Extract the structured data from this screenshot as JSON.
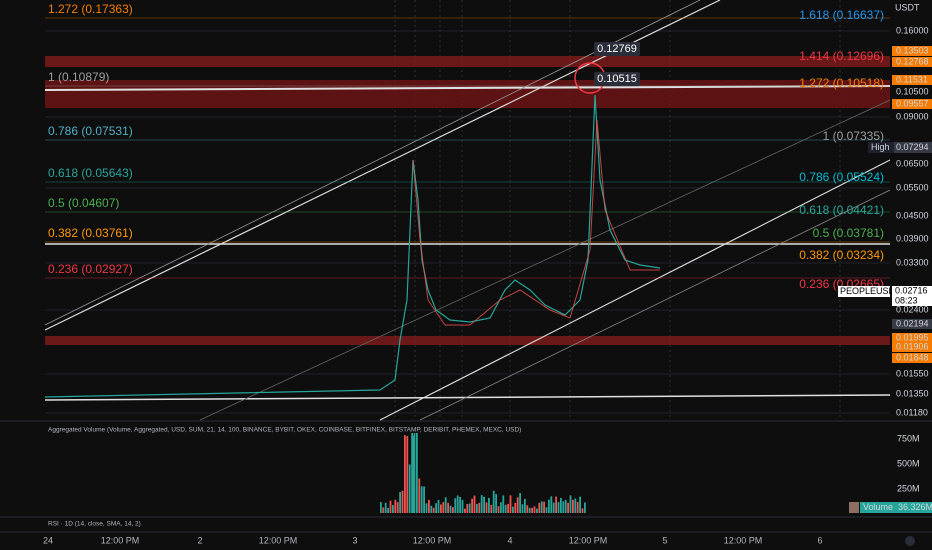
{
  "header": {
    "currency": "USDT"
  },
  "fib_left": [
    {
      "label": "1.272 (0.17363)",
      "color": "#f57c00"
    },
    {
      "label": "1 (0.10879)",
      "color": "#9e9e9e"
    },
    {
      "label": "0.786 (0.07531)",
      "color": "#4fb0c6"
    },
    {
      "label": "0.618 (0.05643)",
      "color": "#26a69a"
    },
    {
      "label": "0.5 (0.04607)",
      "color": "#4caf50"
    },
    {
      "label": "0.382 (0.03761)",
      "color": "#ff9800"
    },
    {
      "label": "0.236 (0.02927)",
      "color": "#f23645"
    }
  ],
  "fib_right": [
    {
      "label": "1.618 (0.16637)",
      "color": "#2196f3"
    },
    {
      "label": "1.414 (0.12696)",
      "color": "#f23645"
    },
    {
      "label": "1.272 (0.10518)",
      "color": "#f57c00"
    },
    {
      "label": "1 (0.07335)",
      "color": "#9e9e9e"
    },
    {
      "label": "0.786 (0.05524)",
      "color": "#00bcd4"
    },
    {
      "label": "0.618 (0.04421)",
      "color": "#26a69a"
    },
    {
      "label": "0.5 (0.03781)",
      "color": "#4caf50"
    },
    {
      "label": "0.382 (0.03234)",
      "color": "#ff9800"
    },
    {
      "label": "0.236 (0.02665)",
      "color": "#f23645"
    }
  ],
  "callouts": [
    "0.12769",
    "0.10515"
  ],
  "price_axis": [
    {
      "text": "0.16000",
      "color": "plain"
    },
    {
      "text": "0.13503",
      "color": "#f57c00"
    },
    {
      "text": "0.12768",
      "color": "#f57c00"
    },
    {
      "text": "0.11531",
      "color": "#f57c00"
    },
    {
      "text": "0.10500",
      "color": "plain"
    },
    {
      "text": "0.09557",
      "color": "#f57c00"
    },
    {
      "text": "0.09000",
      "color": "plain"
    },
    {
      "text": "0.06500",
      "color": "plain"
    },
    {
      "text": "0.05500",
      "color": "plain"
    },
    {
      "text": "0.04500",
      "color": "plain"
    },
    {
      "text": "0.03900",
      "color": "plain"
    },
    {
      "text": "0.03300",
      "color": "plain"
    },
    {
      "text": "0.02400",
      "color": "plain"
    },
    {
      "text": "0.02194",
      "color": "#363a45"
    },
    {
      "text": "0.01995",
      "color": "#f57c00"
    },
    {
      "text": "0.01906",
      "color": "#f57c00"
    },
    {
      "text": "0.01848",
      "color": "#f57c00"
    },
    {
      "text": "0.01550",
      "color": "plain"
    },
    {
      "text": "0.01350",
      "color": "plain"
    },
    {
      "text": "0.01180",
      "color": "plain"
    }
  ],
  "high": {
    "label": "High",
    "value": "0.07294"
  },
  "last": {
    "symbol": "PEOPLEUSDT",
    "price": "0.02716",
    "countdown": "08:23"
  },
  "volume_panel": {
    "caption": "Aggregated Volume (Volume, Aggregated, USD, SUM, 21, 14, 100, BINANCE, BYBIT, OKEX, COINBASE, BITFINEX, BITSTAMP, DERIBIT, PHEMEX, MEXC, USD)",
    "axis": [
      "750M",
      "500M",
      "250M"
    ],
    "legend_name": "Volume",
    "legend_value": "36.326M"
  },
  "rsi_caption": "RSI · 1D (14, close, SMA, 14, 2)",
  "time_axis": [
    "24",
    "12:00 PM",
    "2",
    "12:00 PM",
    "3",
    "12:00 PM",
    "4",
    "12:00 PM",
    "5",
    "12:00 PM",
    "6"
  ]
}
